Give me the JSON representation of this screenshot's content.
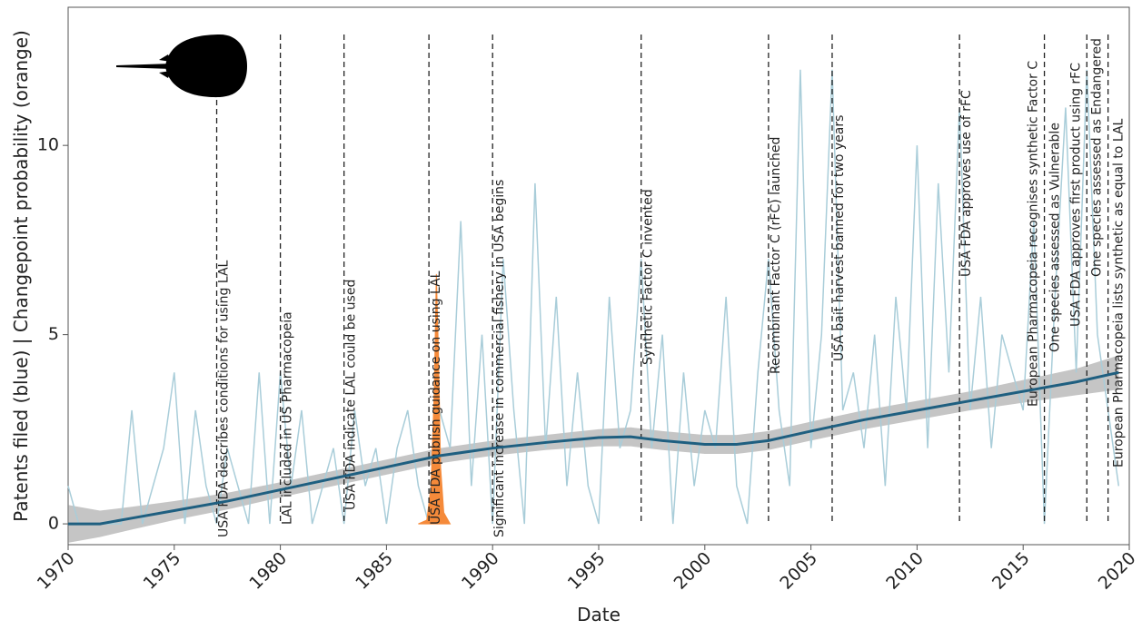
{
  "chart_data": {
    "type": "line",
    "xlabel": "Date",
    "ylabel": "Patents filed (blue) | Changepoint probability (orange)",
    "xlim": [
      1970,
      2020
    ],
    "ylim": [
      -0.55,
      13.65
    ],
    "xticks": [
      1970,
      1975,
      1980,
      1985,
      1990,
      1995,
      2000,
      2005,
      2010,
      2015,
      2020
    ],
    "yticks": [
      0,
      5,
      10
    ],
    "grid": false,
    "series": [
      {
        "color": "#a9cdd9",
        "x": [
          1970,
          1970.5,
          1971,
          1971.5,
          1972,
          1972.5,
          1973,
          1973.5,
          1974,
          1974.5,
          1975,
          1975.5,
          1976,
          1976.5,
          1977,
          1977.5,
          1978,
          1978.5,
          1979,
          1979.5,
          1980,
          1980.5,
          1981,
          1981.5,
          1982,
          1982.5,
          1983,
          1983.5,
          1984,
          1984.5,
          1985,
          1985.5,
          1986,
          1986.5,
          1987,
          1987.5,
          1988,
          1988.5,
          1989,
          1989.5,
          1990,
          1990.5,
          1991,
          1991.5,
          1992,
          1992.5,
          1993,
          1993.5,
          1994,
          1994.5,
          1995,
          1995.5,
          1996,
          1996.5,
          1997,
          1997.5,
          1998,
          1998.5,
          1999,
          1999.5,
          2000,
          2000.5,
          2001,
          2001.5,
          2002,
          2002.5,
          2003,
          2003.5,
          2004,
          2004.5,
          2005,
          2005.5,
          2006,
          2006.5,
          2007,
          2007.5,
          2008,
          2008.5,
          2009,
          2009.5,
          2010,
          2010.5,
          2011,
          2011.5,
          2012,
          2012.5,
          2013,
          2013.5,
          2014,
          2014.5,
          2015,
          2015.5,
          2016,
          2016.5,
          2017,
          2017.5,
          2018,
          2018.5,
          2019,
          2019.5
        ],
        "values": [
          1,
          0,
          0,
          0,
          0,
          0,
          3,
          0,
          1,
          2,
          4,
          0,
          3,
          1,
          0,
          2,
          1,
          0,
          4,
          0,
          4,
          1,
          3,
          0,
          1,
          2,
          0,
          3,
          1,
          2,
          0,
          2,
          3,
          1,
          0,
          3,
          2,
          8,
          1,
          5,
          0,
          7,
          3,
          0,
          9,
          2,
          6,
          1,
          4,
          1,
          0,
          6,
          2,
          3,
          7,
          2,
          5,
          0,
          4,
          1,
          3,
          2,
          6,
          1,
          0,
          4,
          7,
          3,
          1,
          12,
          2,
          5,
          12,
          3,
          4,
          2,
          5,
          1,
          6,
          3,
          10,
          2,
          9,
          4,
          11,
          3,
          6,
          2,
          5,
          4,
          3,
          8,
          0,
          6,
          11,
          4,
          12,
          5,
          3,
          1
        ]
      },
      {
        "color": "#1f5f80",
        "x": [
          1970,
          1971.5,
          1973,
          1975,
          1977.5,
          1980,
          1982.5,
          1985,
          1987.5,
          1990,
          1992.5,
          1995,
          1996.5,
          1998,
          2000,
          2001.5,
          2003,
          2005,
          2007.5,
          2010,
          2012.5,
          2015,
          2017.5,
          2019.5
        ],
        "values": [
          0,
          0,
          0.15,
          0.35,
          0.6,
          0.9,
          1.2,
          1.5,
          1.8,
          2.0,
          2.15,
          2.28,
          2.3,
          2.2,
          2.1,
          2.1,
          2.2,
          2.45,
          2.75,
          3.0,
          3.25,
          3.5,
          3.75,
          4.0
        ]
      }
    ],
    "confidence_band": {
      "color": "#8c8c8c",
      "x": [
        1970,
        1971.5,
        1973,
        1975,
        1977.5,
        1980,
        1982.5,
        1985,
        1987.5,
        1990,
        1992.5,
        1995,
        1996.5,
        1998,
        2000,
        2001.5,
        2003,
        2005,
        2007.5,
        2010,
        2012.5,
        2015,
        2017.5,
        2019.5
      ],
      "lower": [
        -0.5,
        -0.35,
        -0.15,
        0.1,
        0.38,
        0.7,
        1.0,
        1.3,
        1.6,
        1.8,
        1.95,
        2.05,
        2.05,
        1.95,
        1.85,
        1.85,
        1.95,
        2.2,
        2.5,
        2.75,
        3.0,
        3.2,
        3.4,
        3.55
      ],
      "upper": [
        0.5,
        0.35,
        0.45,
        0.6,
        0.82,
        1.1,
        1.4,
        1.7,
        2.0,
        2.2,
        2.35,
        2.5,
        2.55,
        2.45,
        2.35,
        2.35,
        2.45,
        2.7,
        3.0,
        3.25,
        3.5,
        3.8,
        4.1,
        4.45
      ]
    },
    "changepoint": {
      "color": "#f58a3a",
      "x": [
        1986.5,
        1986.9,
        1987.1,
        1987.25,
        1987.35,
        1987.45,
        1987.55,
        1987.7,
        1988
      ],
      "values": [
        0,
        0.1,
        1.0,
        3.5,
        6.6,
        4.5,
        1.5,
        0.3,
        0
      ]
    },
    "annotations": [
      {
        "x": 1977,
        "text": "USA FDA describes conditions for using LAL"
      },
      {
        "x": 1980,
        "text": "LAL included in US Pharmacopeia"
      },
      {
        "x": 1983,
        "text": "USA FDA indicate LAL could be used"
      },
      {
        "x": 1987,
        "text": "USA FDA publish guidance on using LAL"
      },
      {
        "x": 1990,
        "text": "Significant increase in commercial fishery in USA begins"
      },
      {
        "x": 1997,
        "text": "Synthetic Factor C invented"
      },
      {
        "x": 2003,
        "text": "Recombinant Factor C (rFC) launched"
      },
      {
        "x": 2006,
        "text": "USA bait harvest banned for two years"
      },
      {
        "x": 2012,
        "text": "USA FDA approves use of rFC"
      },
      {
        "x": 2016,
        "text": "European Pharmacopeia recognises synthetic Factor C"
      },
      {
        "x": 2016,
        "text": "One species assessed as Vulnerable"
      },
      {
        "x": 2018,
        "text": "USA FDA approves first product using rFC"
      },
      {
        "x": 2019,
        "text": "One species assessed as Endangered"
      },
      {
        "x": 2019,
        "text": "European Pharmacopeia lists synthetic as equal to LAL"
      }
    ]
  }
}
